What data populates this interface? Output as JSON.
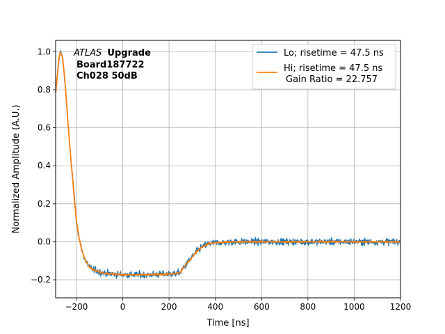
{
  "chart_data": {
    "type": "line",
    "xlabel": "Time [ns]",
    "ylabel": "Normalized Amplitude (A.U.)",
    "xlim": [
      -290,
      1200
    ],
    "ylim": [
      -0.295,
      1.06
    ],
    "xticks": [
      -200,
      0,
      200,
      400,
      600,
      800,
      1000,
      1200
    ],
    "xtick_labels": [
      "−200",
      "0",
      "200",
      "400",
      "600",
      "800",
      "1000",
      "1200"
    ],
    "yticks": [
      -0.2,
      0.0,
      0.2,
      0.4,
      0.6,
      0.8,
      1.0
    ],
    "ytick_labels": [
      "−0.2",
      "0.0",
      "0.2",
      "0.4",
      "0.6",
      "0.8",
      "1.0"
    ],
    "grid": true,
    "legend_position": "top-right",
    "annotation": {
      "experiment": "ATLAS",
      "word": "Upgrade",
      "line2": "Board187722",
      "line3": "Ch028 50dB"
    },
    "series": [
      {
        "name": "Lo; risetime = 47.5 ns",
        "color": "#1f77b4",
        "noise": 0.012,
        "x": [
          -290,
          -275,
          -270,
          -260,
          -250,
          -240,
          -230,
          -220,
          -210,
          -200,
          -190,
          -180,
          -170,
          -160,
          -150,
          -140,
          -130,
          -120,
          -100,
          -80,
          -60,
          -40,
          -20,
          0,
          50,
          100,
          150,
          200,
          230,
          250,
          260,
          280,
          300,
          320,
          340,
          360,
          380,
          400,
          450,
          500,
          600,
          700,
          800,
          900,
          1000,
          1100,
          1200
        ],
        "y": [
          0.78,
          0.97,
          1.0,
          0.97,
          0.85,
          0.68,
          0.52,
          0.38,
          0.24,
          0.11,
          0.03,
          -0.03,
          -0.07,
          -0.1,
          -0.12,
          -0.135,
          -0.145,
          -0.15,
          -0.16,
          -0.165,
          -0.168,
          -0.17,
          -0.172,
          -0.173,
          -0.174,
          -0.174,
          -0.172,
          -0.17,
          -0.168,
          -0.16,
          -0.14,
          -0.11,
          -0.08,
          -0.05,
          -0.03,
          -0.015,
          -0.008,
          -0.005,
          -0.002,
          0.0,
          0.0,
          0.0,
          0.0,
          0.0,
          0.0,
          0.0,
          0.0
        ]
      },
      {
        "name": "Hi; risetime = 47.5 ns",
        "name_line2": "Gain Ratio = 22.757",
        "color": "#ff7f0e",
        "noise": 0.0025,
        "x": [
          -290,
          -275,
          -270,
          -260,
          -250,
          -240,
          -230,
          -220,
          -210,
          -200,
          -190,
          -180,
          -170,
          -160,
          -150,
          -140,
          -130,
          -120,
          -100,
          -80,
          -60,
          -40,
          -20,
          0,
          50,
          100,
          150,
          200,
          230,
          250,
          260,
          280,
          300,
          320,
          340,
          360,
          380,
          400,
          450,
          500,
          600,
          700,
          800,
          900,
          1000,
          1100,
          1200
        ],
        "y": [
          0.78,
          0.97,
          1.0,
          0.97,
          0.85,
          0.68,
          0.52,
          0.38,
          0.24,
          0.11,
          0.03,
          -0.03,
          -0.07,
          -0.1,
          -0.12,
          -0.135,
          -0.145,
          -0.15,
          -0.16,
          -0.165,
          -0.168,
          -0.17,
          -0.172,
          -0.173,
          -0.174,
          -0.174,
          -0.172,
          -0.17,
          -0.168,
          -0.16,
          -0.14,
          -0.11,
          -0.08,
          -0.05,
          -0.03,
          -0.015,
          -0.008,
          -0.005,
          -0.002,
          0.0,
          0.0,
          0.0,
          0.0,
          0.0,
          0.0,
          0.0,
          0.0
        ]
      }
    ]
  }
}
